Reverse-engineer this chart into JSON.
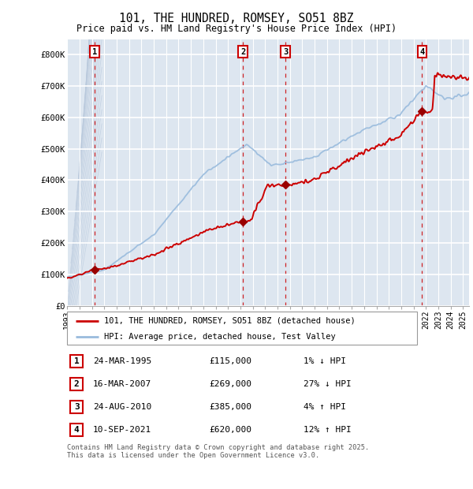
{
  "title": "101, THE HUNDRED, ROMSEY, SO51 8BZ",
  "subtitle": "Price paid vs. HM Land Registry's House Price Index (HPI)",
  "ylim": [
    0,
    850000
  ],
  "yticks": [
    0,
    100000,
    200000,
    300000,
    400000,
    500000,
    600000,
    700000,
    800000
  ],
  "ytick_labels": [
    "£0",
    "£100K",
    "£200K",
    "£300K",
    "£400K",
    "£500K",
    "£600K",
    "£700K",
    "£800K"
  ],
  "bg_color": "#dde6f0",
  "grid_color": "#ffffff",
  "red_line_color": "#cc0000",
  "blue_line_color": "#99bbdd",
  "sale_color": "#990000",
  "transaction_dates": [
    1995.22,
    2007.21,
    2010.65,
    2021.69
  ],
  "transaction_prices": [
    115000,
    269000,
    385000,
    620000
  ],
  "transaction_labels": [
    "1",
    "2",
    "3",
    "4"
  ],
  "legend_label_red": "101, THE HUNDRED, ROMSEY, SO51 8BZ (detached house)",
  "legend_label_blue": "HPI: Average price, detached house, Test Valley",
  "table_rows": [
    [
      "1",
      "24-MAR-1995",
      "£115,000",
      "1% ↓ HPI"
    ],
    [
      "2",
      "16-MAR-2007",
      "£269,000",
      "27% ↓ HPI"
    ],
    [
      "3",
      "24-AUG-2010",
      "£385,000",
      "4% ↑ HPI"
    ],
    [
      "4",
      "10-SEP-2021",
      "£620,000",
      "12% ↑ HPI"
    ]
  ],
  "footnote": "Contains HM Land Registry data © Crown copyright and database right 2025.\nThis data is licensed under the Open Government Licence v3.0.",
  "xlim_left": 1993.0,
  "xlim_right": 2025.5
}
